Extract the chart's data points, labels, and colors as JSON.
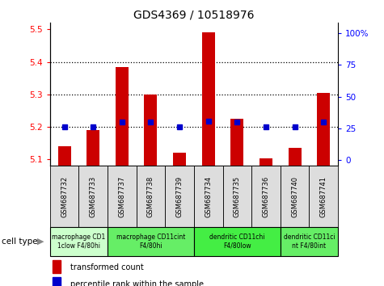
{
  "title": "GDS4369 / 10518976",
  "samples": [
    "GSM687732",
    "GSM687733",
    "GSM687737",
    "GSM687738",
    "GSM687739",
    "GSM687734",
    "GSM687735",
    "GSM687736",
    "GSM687740",
    "GSM687741"
  ],
  "transformed_count": [
    5.14,
    5.19,
    5.385,
    5.3,
    5.12,
    5.49,
    5.225,
    5.103,
    5.135,
    5.305
  ],
  "percentile_rank_values": [
    5.2,
    5.2,
    5.215,
    5.215,
    5.2,
    5.218,
    5.215,
    5.2,
    5.2,
    5.215
  ],
  "ylim_left": [
    5.08,
    5.52
  ],
  "ylim_right": [
    -4.4,
    108
  ],
  "yticks_left": [
    5.1,
    5.2,
    5.3,
    5.4,
    5.5
  ],
  "yticks_right": [
    0,
    25,
    50,
    75,
    100
  ],
  "ytick_labels_right": [
    "0",
    "25",
    "50",
    "75",
    "100%"
  ],
  "bar_color": "#cc0000",
  "dot_color": "#0000cc",
  "cell_type_groups": [
    {
      "label": "macrophage CD1\n1clow F4/80hi",
      "start": 0,
      "end": 2,
      "color": "#ccffcc"
    },
    {
      "label": "macrophage CD11cint\nF4/80hi",
      "start": 2,
      "end": 5,
      "color": "#66ee66"
    },
    {
      "label": "dendritic CD11chi\nF4/80low",
      "start": 5,
      "end": 8,
      "color": "#44ee44"
    },
    {
      "label": "dendritic CD11ci\nnt F4/80int",
      "start": 8,
      "end": 10,
      "color": "#66ee66"
    }
  ],
  "legend_red": "transformed count",
  "legend_blue": "percentile rank within the sample",
  "cell_type_label": "cell type"
}
